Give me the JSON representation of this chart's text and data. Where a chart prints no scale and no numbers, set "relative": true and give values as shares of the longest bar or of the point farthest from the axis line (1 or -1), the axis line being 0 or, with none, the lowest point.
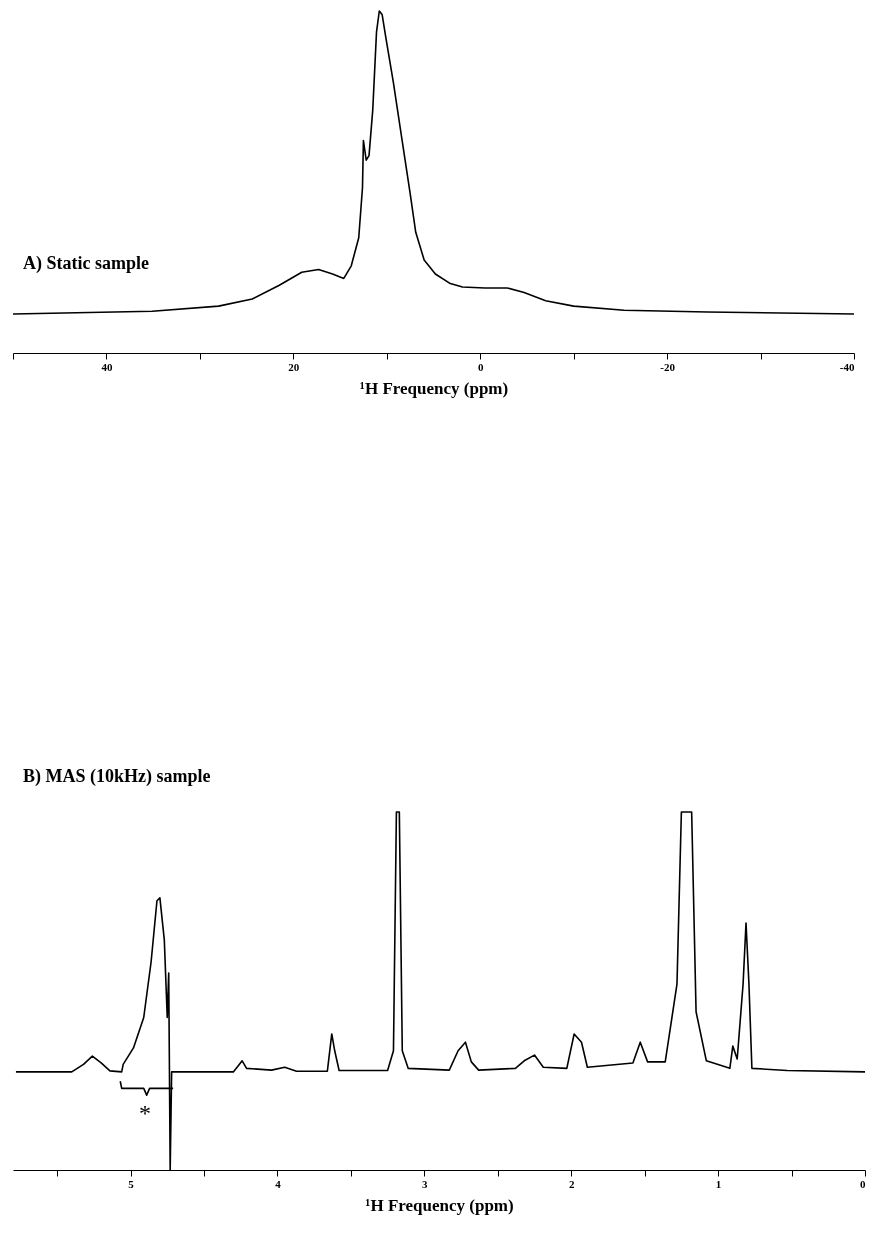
{
  "chart_data": [
    {
      "type": "line",
      "title": "A) Static sample",
      "xlabel": "¹H Frequency (ppm)",
      "relative": true,
      "grid": false,
      "marker": "none",
      "line_style": "solid",
      "xlim": [
        50,
        -40
      ],
      "xticks": [
        {
          "value": 50,
          "label": null
        },
        40,
        {
          "value": 30,
          "label": null
        },
        20,
        {
          "value": 10,
          "label": null
        },
        0,
        {
          "value": -10,
          "label": null
        },
        -20,
        {
          "value": -30,
          "label": null
        },
        -40
      ],
      "series": [
        {
          "color": "#000000",
          "x": [
            50,
            35.1,
            28.0,
            24.4,
            21.5,
            19.1,
            17.3,
            15.8,
            14.6,
            13.8,
            13.0,
            12.6,
            12.5,
            12.2,
            11.9,
            11.5,
            11.1,
            10.8,
            10.5,
            10.1,
            9.3,
            8.4,
            7.5,
            6.9,
            6.0,
            4.8,
            3.2,
            1.9,
            -0.5,
            -2.9,
            -4.7,
            -7.0,
            -10.0,
            -15.4,
            -24.3,
            -40
          ],
          "values": [
            0.114,
            0.122,
            0.137,
            0.158,
            0.198,
            0.236,
            0.244,
            0.231,
            0.218,
            0.255,
            0.337,
            0.483,
            0.621,
            0.564,
            0.577,
            0.711,
            0.938,
            1.0,
            0.99,
            0.922,
            0.792,
            0.629,
            0.467,
            0.353,
            0.272,
            0.231,
            0.203,
            0.193,
            0.19,
            0.19,
            0.177,
            0.153,
            0.137,
            0.125,
            0.12,
            0.114
          ]
        }
      ]
    },
    {
      "type": "line",
      "title": "B) MAS (10kHz) sample",
      "xlabel": "¹H Frequency (ppm)",
      "relative": true,
      "grid": false,
      "marker": "none",
      "line_style": "solid",
      "annotations": [
        "*"
      ],
      "xlim": [
        5.8,
        0
      ],
      "xticks": [
        {
          "value": 5.5,
          "label": null
        },
        5,
        {
          "value": 4.5,
          "label": null
        },
        4,
        {
          "value": 3.5,
          "label": null
        },
        3,
        {
          "value": 2.5,
          "label": null
        },
        2,
        {
          "value": 1.5,
          "label": null
        },
        1,
        {
          "value": 0.5,
          "label": null
        },
        0
      ],
      "series": [
        {
          "color": "#000000",
          "x": [
            5.78,
            5.4,
            5.32,
            5.26,
            5.2,
            5.14,
            5.06,
            5.05,
            4.98,
            4.91,
            4.86,
            4.82,
            4.8,
            4.77,
            4.75,
            4.74,
            4.73,
            4.72,
            4.3,
            4.24,
            4.21,
            4.04,
            3.95,
            3.87,
            3.66,
            3.63,
            3.61,
            3.58,
            3.25,
            3.21,
            3.19,
            3.17,
            3.15,
            3.11,
            2.83,
            2.77,
            2.72,
            2.68,
            2.63,
            2.38,
            2.32,
            2.25,
            2.19,
            2.03,
            1.98,
            1.93,
            1.89,
            1.58,
            1.53,
            1.48,
            1.36,
            1.28,
            1.25,
            1.18,
            1.15,
            1.08,
            0.92,
            0.9,
            0.87,
            0.83,
            0.81,
            0.79,
            0.77,
            0.53,
            0
          ],
          "values": [
            0.274,
            0.274,
            0.295,
            0.318,
            0.299,
            0.277,
            0.274,
            0.295,
            0.341,
            0.426,
            0.581,
            0.752,
            0.76,
            0.643,
            0.426,
            0.55,
            0,
            0.274,
            0.274,
            0.305,
            0.284,
            0.279,
            0.287,
            0.276,
            0.276,
            0.38,
            0.333,
            0.278,
            0.278,
            0.333,
            1,
            1,
            0.333,
            0.284,
            0.279,
            0.333,
            0.357,
            0.302,
            0.279,
            0.284,
            0.305,
            0.321,
            0.287,
            0.284,
            0.38,
            0.357,
            0.287,
            0.299,
            0.357,
            0.302,
            0.302,
            0.519,
            1,
            1,
            0.442,
            0.305,
            0.284,
            0.346,
            0.31,
            0.519,
            0.69,
            0.519,
            0.284,
            0.278,
            0.274
          ]
        },
        {
          "color": "#000000",
          "x": [
            5.07,
            5.06,
            4.91,
            4.89,
            4.87,
            4.71
          ],
          "values": [
            0.248,
            0.228,
            0.228,
            0.209,
            0.228,
            0.228
          ]
        }
      ]
    }
  ]
}
